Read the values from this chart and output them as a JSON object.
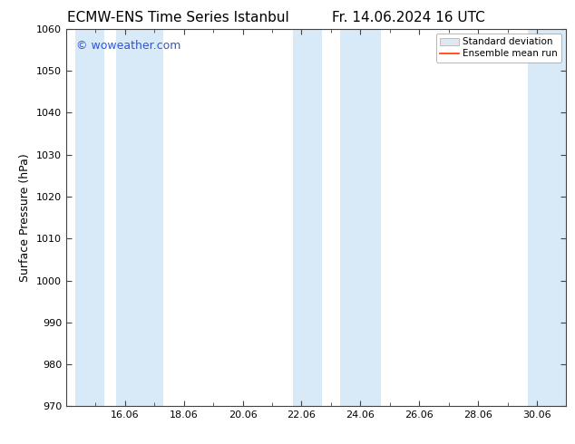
{
  "title_left": "ECMW-ENS Time Series Istanbul",
  "title_right": "Fr. 14.06.2024 16 UTC",
  "ylabel": "Surface Pressure (hPa)",
  "ylim": [
    970,
    1060
  ],
  "yticks": [
    970,
    980,
    990,
    1000,
    1010,
    1020,
    1030,
    1040,
    1050,
    1060
  ],
  "shaded_bands": [
    {
      "x_start": 14.3,
      "x_end": 15.3
    },
    {
      "x_start": 15.7,
      "x_end": 17.3
    },
    {
      "x_start": 21.7,
      "x_end": 22.7
    },
    {
      "x_start": 23.3,
      "x_end": 24.7
    },
    {
      "x_start": 29.7,
      "x_end": 31.2
    }
  ],
  "band_color": "#d8eaf7",
  "background_color": "#ffffff",
  "watermark_text": "© woweather.com",
  "watermark_color": "#3355cc",
  "legend_std_facecolor": "#dde8f0",
  "legend_std_edgecolor": "#aaaaaa",
  "legend_mean_color": "#ff3300",
  "title_fontsize": 11,
  "ylabel_fontsize": 9,
  "tick_fontsize": 8,
  "watermark_fontsize": 9,
  "legend_fontsize": 7.5,
  "xtick_positions": [
    15,
    16,
    17,
    18,
    19,
    20,
    21,
    22,
    23,
    24,
    25,
    26,
    27,
    28,
    29,
    30
  ],
  "xtick_labels_major": [
    16,
    18,
    20,
    22,
    24,
    26,
    28,
    30
  ],
  "xtick_major_positions": [
    16,
    18,
    20,
    22,
    24,
    26,
    28,
    30
  ],
  "xlim": [
    14.0,
    31.0
  ],
  "spine_color": "#444444",
  "tick_color": "#444444"
}
